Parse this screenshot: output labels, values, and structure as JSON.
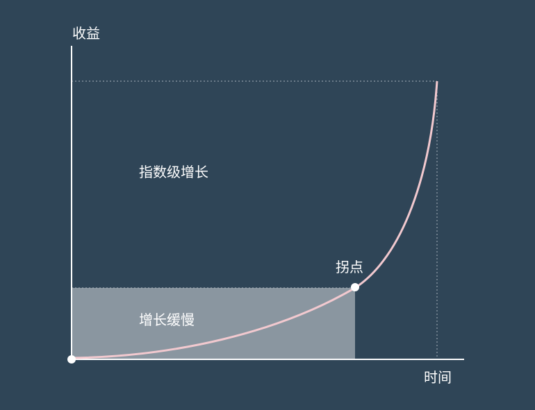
{
  "diagram": {
    "y_axis_label": "收益",
    "x_axis_label": "时间",
    "upper_region_label": "指数级增长",
    "lower_region_label": "增长缓慢",
    "point_label": "拐点"
  },
  "colors": {
    "background": "#2f4557",
    "axis": "#ffffff",
    "curve": "#f2c9cf",
    "slow_region_fill": "#8a96a0",
    "guide_lines": "#a9b4bd",
    "point_fill": "#ffffff"
  }
}
